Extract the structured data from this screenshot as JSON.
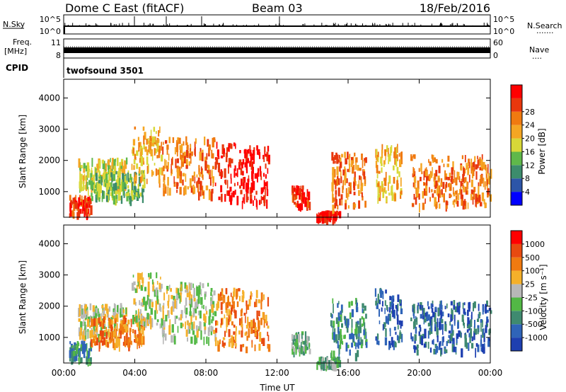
{
  "header": {
    "station": "Dome C East (fitACF)",
    "beam": "Beam 03",
    "date": "18/Feb/2016"
  },
  "strip_nsky": {
    "left_label": "N.Sky",
    "tick_high": "10^5",
    "tick_low": "10^0",
    "right_high": "10^5",
    "right_low": "10^0",
    "right_label": "N.Search",
    "right_label_dots": "·······"
  },
  "strip_freq": {
    "left_label_1": "Freq.",
    "left_label_2": "[MHz]",
    "tick_high": "11",
    "tick_low": "8",
    "right_high": "60",
    "right_low": "0",
    "right_label": "Nave",
    "right_label_dots": "····"
  },
  "cpid": {
    "label": "CPID",
    "program": "twofsound 3501"
  },
  "x_axis": {
    "title": "Time UT",
    "ticks": [
      "00:00",
      "04:00",
      "08:00",
      "12:00",
      "16:00",
      "20:00",
      "00:00"
    ],
    "range_hours": [
      0,
      24
    ]
  },
  "chart_data": [
    {
      "type": "heatmap",
      "ylabel": "Slant Range [km]",
      "yticks": [
        "1000",
        "2000",
        "3000",
        "4000"
      ],
      "ylim": [
        180,
        4600
      ],
      "colorbar": {
        "label": "Power [dB]",
        "ticks": [
          "4",
          "8",
          "12",
          "16",
          "20",
          "24",
          "28"
        ],
        "colors": [
          "#0000ff",
          "#2d55a8",
          "#3c8c6c",
          "#5fb84a",
          "#d8d838",
          "#f5a623",
          "#f07a10",
          "#e8370d",
          "#ff0000"
        ]
      },
      "echo_regions": [
        {
          "t": [
            0.3,
            1.5
          ],
          "r": [
            300,
            900
          ],
          "level": 7
        },
        {
          "t": [
            0.8,
            3.5
          ],
          "r": [
            1100,
            2100
          ],
          "level": 4
        },
        {
          "t": [
            1.5,
            4.5
          ],
          "r": [
            800,
            1700
          ],
          "level": 3
        },
        {
          "t": [
            3.8,
            5.5
          ],
          "r": [
            1400,
            3100
          ],
          "level": 5
        },
        {
          "t": [
            5.5,
            8.5
          ],
          "r": [
            1000,
            2800
          ],
          "level": 6
        },
        {
          "t": [
            8.5,
            11.5
          ],
          "r": [
            700,
            2600
          ],
          "level": 8
        },
        {
          "t": [
            12.8,
            13.8
          ],
          "r": [
            600,
            1200
          ],
          "level": 7
        },
        {
          "t": [
            14.2,
            15.5
          ],
          "r": [
            180,
            400
          ],
          "level": 8
        },
        {
          "t": [
            15.0,
            17.0
          ],
          "r": [
            500,
            2300
          ],
          "level": 6
        },
        {
          "t": [
            17.5,
            19.0
          ],
          "r": [
            800,
            2600
          ],
          "level": 5
        },
        {
          "t": [
            19.5,
            24.0
          ],
          "r": [
            600,
            2200
          ],
          "level": 6
        }
      ]
    },
    {
      "type": "heatmap",
      "ylabel": "Slant Range [km]",
      "yticks": [
        "1000",
        "2000",
        "3000",
        "4000"
      ],
      "ylim": [
        180,
        4600
      ],
      "colorbar": {
        "label": "Velocity [m s⁻¹]",
        "ticks": [
          "1000",
          "500",
          "100",
          "25",
          "-25",
          "-100",
          "-500",
          "-1000"
        ],
        "colors": [
          "#1e3fb0",
          "#2f64b8",
          "#3f8a70",
          "#52b845",
          "#b8b8b8",
          "#f5b02a",
          "#f07a10",
          "#e84a10",
          "#ff0000"
        ]
      },
      "echo_regions": [
        {
          "t": [
            0.3,
            1.5
          ],
          "r": [
            300,
            900
          ],
          "level": 2
        },
        {
          "t": [
            0.8,
            3.5
          ],
          "r": [
            1100,
            2100
          ],
          "level": 4
        },
        {
          "t": [
            1.5,
            4.5
          ],
          "r": [
            800,
            1700
          ],
          "level": 6
        },
        {
          "t": [
            3.8,
            5.5
          ],
          "r": [
            1400,
            3100
          ],
          "level": 4
        },
        {
          "t": [
            5.5,
            8.5
          ],
          "r": [
            1000,
            2800
          ],
          "level": 4
        },
        {
          "t": [
            8.5,
            11.5
          ],
          "r": [
            700,
            2600
          ],
          "level": 6
        },
        {
          "t": [
            12.8,
            13.8
          ],
          "r": [
            600,
            1200
          ],
          "level": 3
        },
        {
          "t": [
            14.2,
            15.5
          ],
          "r": [
            180,
            400
          ],
          "level": 3
        },
        {
          "t": [
            15.0,
            17.0
          ],
          "r": [
            500,
            2300
          ],
          "level": 2
        },
        {
          "t": [
            17.5,
            19.0
          ],
          "r": [
            800,
            2600
          ],
          "level": 1
        },
        {
          "t": [
            19.5,
            24.0
          ],
          "r": [
            600,
            2200
          ],
          "level": 1
        }
      ]
    }
  ]
}
